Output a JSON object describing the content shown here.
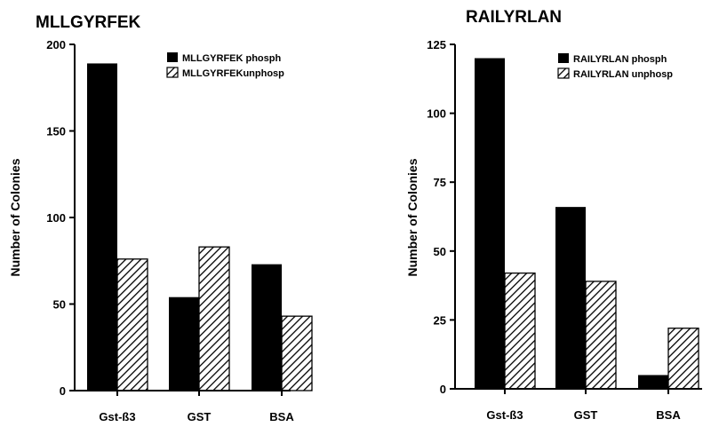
{
  "chart_data": [
    {
      "type": "bar",
      "title": "MLLGYRFEK",
      "xlabel": "",
      "ylabel": "Number of Colonies",
      "ylim": [
        0,
        200
      ],
      "yticks": [
        0,
        50,
        100,
        150,
        200
      ],
      "categories": [
        "Gst-ß3",
        "GST",
        "BSA"
      ],
      "series": [
        {
          "name": "MLLGYRFEK phosph",
          "values": [
            189,
            54,
            73
          ],
          "fill": "solid"
        },
        {
          "name": "MLLGYRFEKunphosp",
          "values": [
            76,
            83,
            43
          ],
          "fill": "hatched"
        }
      ],
      "legend": "top-right",
      "grid": false
    },
    {
      "type": "bar",
      "title": "RAILYRLAN",
      "xlabel": "",
      "ylabel": "Number of Colonies",
      "ylim": [
        0,
        125
      ],
      "yticks": [
        0,
        25,
        50,
        75,
        100,
        125
      ],
      "categories": [
        "Gst-ß3",
        "GST",
        "BSA"
      ],
      "series": [
        {
          "name": "RAILYRLAN phosph",
          "values": [
            120,
            66,
            5
          ],
          "fill": "solid"
        },
        {
          "name": "RAILYRLAN unphosp",
          "values": [
            42,
            39,
            22
          ],
          "fill": "hatched"
        }
      ],
      "legend": "top-right",
      "grid": false
    }
  ],
  "colors": {
    "solid": "#000000",
    "hatched_line": "#000000",
    "background": "#ffffff"
  }
}
